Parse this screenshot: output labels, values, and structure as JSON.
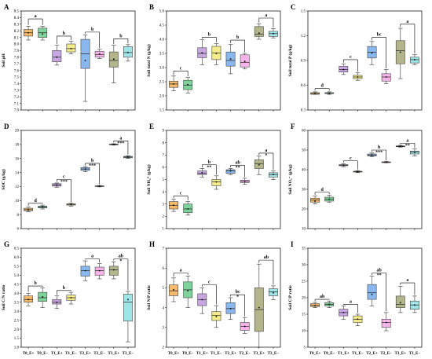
{
  "figure": {
    "colors": [
      "#f4b96a",
      "#7ed39a",
      "#c7a6e2",
      "#f4ec8b",
      "#8ab8ee",
      "#f6b4ea",
      "#b5b58b",
      "#9fe5e8"
    ]
  },
  "chart_data": [
    {
      "panel": "A",
      "type": "box",
      "ylabel": "Soil pH",
      "ylim": [
        7.0,
        8.5
      ],
      "yticks": [
        7.0,
        7.1,
        7.2,
        7.3,
        7.4,
        7.5,
        7.6,
        7.7,
        7.8,
        7.9,
        8.0,
        8.1,
        8.2,
        8.3,
        8.4,
        8.5
      ],
      "ytick_labels": [
        "7.0",
        "7.1",
        "7.2",
        "7.3",
        "7.4",
        "7.5",
        "7.6",
        "7.7",
        "7.8",
        "7.9",
        "8.0",
        "8.1",
        "8.2",
        "8.3",
        "8.4",
        "8.5"
      ],
      "categories": [
        "T0_E+",
        "T0_E−",
        "T1_E+",
        "T1_E−",
        "T2_E+",
        "T2_E−",
        "T3_E+",
        "T3_E−"
      ],
      "boxes": [
        [
          8.06,
          8.12,
          8.17,
          8.22,
          8.27
        ],
        [
          8.06,
          8.1,
          8.17,
          8.24,
          8.27
        ],
        [
          7.68,
          7.73,
          7.8,
          7.9,
          7.98
        ],
        [
          7.85,
          7.88,
          7.93,
          8.0,
          8.04
        ],
        [
          7.13,
          7.63,
          7.85,
          8.07,
          8.14
        ],
        [
          7.78,
          7.8,
          7.84,
          7.89,
          7.92
        ],
        [
          7.41,
          7.65,
          7.75,
          7.88,
          7.98
        ],
        [
          7.74,
          7.8,
          7.87,
          7.96,
          7.99
        ]
      ],
      "means": [
        8.17,
        8.15,
        7.8,
        7.93,
        7.75,
        7.85,
        7.77,
        7.87
      ],
      "groups": [
        {
          "pair": [
            0,
            1
          ],
          "letter": "a",
          "y": 8.38
        },
        {
          "pair": [
            2,
            3
          ],
          "letter": "b",
          "y": 8.12
        },
        {
          "pair": [
            4,
            5
          ],
          "letter": "b",
          "y": 8.18
        },
        {
          "pair": [
            6,
            7
          ],
          "letter": "b",
          "y": 8.08
        }
      ]
    },
    {
      "panel": "B",
      "type": "box",
      "ylabel": "Soil total N (g/kg)",
      "ylim": [
        1.5,
        5.0
      ],
      "yticks": [
        1.5,
        2.0,
        2.5,
        3.0,
        3.5,
        4.0,
        4.5,
        5.0
      ],
      "ytick_labels": [
        "1.5",
        "2.0",
        "2.5",
        "3.0",
        "3.5",
        "4.0",
        "4.5",
        "5.0"
      ],
      "categories": [
        "T0_E+",
        "T0_E−",
        "T1_E+",
        "T1_E−",
        "T2_E+",
        "T2_E−",
        "T3_E+",
        "T3_E−"
      ],
      "boxes": [
        [
          2.18,
          2.3,
          2.42,
          2.52,
          2.7
        ],
        [
          2.1,
          2.22,
          2.38,
          2.55,
          2.65
        ],
        [
          3.1,
          3.35,
          3.5,
          3.7,
          3.98
        ],
        [
          3.1,
          3.28,
          3.52,
          3.75,
          3.85
        ],
        [
          2.78,
          3.05,
          3.25,
          3.55,
          3.82
        ],
        [
          2.95,
          3.02,
          3.18,
          3.45,
          3.5
        ],
        [
          4.0,
          4.1,
          4.18,
          4.45,
          4.55
        ],
        [
          4.05,
          4.1,
          4.2,
          4.28,
          4.38
        ]
      ],
      "means": [
        2.42,
        2.4,
        3.52,
        3.5,
        3.3,
        3.22,
        4.22,
        4.2
      ],
      "groups": [
        {
          "pair": [
            0,
            1
          ],
          "letter": "c",
          "y": 2.88
        },
        {
          "pair": [
            2,
            3
          ],
          "letter": "b",
          "y": 4.07
        },
        {
          "pair": [
            4,
            5
          ],
          "letter": "b",
          "y": 3.97
        },
        {
          "pair": [
            6,
            7
          ],
          "letter": "a",
          "y": 4.75
        }
      ]
    },
    {
      "panel": "C",
      "type": "box",
      "ylabel": "Soil total P (g/kg)",
      "ylim": [
        0.3,
        1.5
      ],
      "yticks": [
        0.3,
        0.6,
        0.9,
        1.2,
        1.5
      ],
      "ytick_labels": [
        "0.3",
        "0.6",
        "0.9",
        "1.2",
        "1.5"
      ],
      "categories": [
        "T0_E+",
        "T0_E−",
        "T1_E+",
        "T1_E−",
        "T2_E+",
        "T2_E−",
        "T3_E+",
        "T3_E−"
      ],
      "boxes": [
        [
          0.49,
          0.49,
          0.5,
          0.51,
          0.52
        ],
        [
          0.49,
          0.5,
          0.5,
          0.51,
          0.52
        ],
        [
          0.73,
          0.76,
          0.79,
          0.83,
          0.86
        ],
        [
          0.66,
          0.68,
          0.7,
          0.72,
          0.75
        ],
        [
          0.85,
          0.93,
          1.0,
          1.07,
          1.13
        ],
        [
          0.62,
          0.65,
          0.7,
          0.74,
          0.79
        ],
        [
          0.68,
          0.86,
          1.02,
          1.14,
          1.29
        ],
        [
          0.85,
          0.87,
          0.91,
          0.94,
          0.97
        ]
      ],
      "means": [
        0.5,
        0.5,
        0.79,
        0.7,
        0.99,
        0.7,
        1.0,
        0.91
      ],
      "groups": [
        {
          "pair": [
            0,
            1
          ],
          "letter": "d",
          "y": 0.56
        },
        {
          "pair": [
            2,
            3
          ],
          "letter": "c",
          "y": 0.91
        },
        {
          "pair": [
            4,
            5
          ],
          "letter": "bc",
          "y": 1.18
        },
        {
          "pair": [
            6,
            7
          ],
          "letter": "a",
          "y": 1.34
        }
      ]
    },
    {
      "panel": "D",
      "type": "box",
      "ylabel": "SOC (g/kg)",
      "ylim": [
        6,
        20
      ],
      "yticks": [
        6,
        8,
        10,
        12,
        14,
        16,
        18,
        20
      ],
      "ytick_labels": [
        "6",
        "8",
        "10",
        "12",
        "14",
        "16",
        "18",
        "20"
      ],
      "categories": [
        "T0_E+",
        "T0_E−",
        "T1_E+",
        "T1_E−",
        "T2_E+",
        "T2_E−",
        "T3_E+",
        "T3_E−"
      ],
      "boxes": [
        [
          8.4,
          8.55,
          8.7,
          8.9,
          9.05
        ],
        [
          8.8,
          8.95,
          9.1,
          9.2,
          9.35
        ],
        [
          11.9,
          12.05,
          12.2,
          12.4,
          12.5
        ],
        [
          9.2,
          9.35,
          9.45,
          9.55,
          9.6
        ],
        [
          14.1,
          14.3,
          14.5,
          14.7,
          14.85
        ],
        [
          11.95,
          12.0,
          12.05,
          12.1,
          12.15
        ],
        [
          17.9,
          17.95,
          18.0,
          18.05,
          18.1
        ],
        [
          16.0,
          16.1,
          16.2,
          16.3,
          16.4
        ]
      ],
      "means": [
        8.7,
        9.1,
        12.2,
        9.45,
        14.5,
        12.05,
        18.0,
        16.2
      ],
      "groups": [
        {
          "pair": [
            0,
            1
          ],
          "letter": "d",
          "y": 9.6,
          "star": ""
        },
        {
          "pair": [
            2,
            3
          ],
          "letter": "c",
          "y": 13.0,
          "star": "***"
        },
        {
          "pair": [
            4,
            5
          ],
          "letter": "b",
          "y": 15.3,
          "star": "***"
        },
        {
          "pair": [
            6,
            7
          ],
          "letter": "a",
          "y": 18.5,
          "star": "***"
        }
      ]
    },
    {
      "panel": "E",
      "type": "box",
      "ylabel": "Soil NH₄⁺ (g/kg)",
      "ylim": [
        1,
        9
      ],
      "yticks": [
        1,
        2,
        3,
        4,
        5,
        6,
        7,
        8,
        9
      ],
      "ytick_labels": [
        "1",
        "2",
        "3",
        "4",
        "5",
        "6",
        "7",
        "8",
        "9"
      ],
      "categories": [
        "T0_E+",
        "T0_E−",
        "T1_E+",
        "T1_E−",
        "T2_E+",
        "T2_E−",
        "T3_E+",
        "T3_E−"
      ],
      "boxes": [
        [
          2.4,
          2.6,
          2.9,
          3.2,
          3.4
        ],
        [
          2.1,
          2.3,
          2.6,
          3.0,
          3.2
        ],
        [
          5.2,
          5.4,
          5.5,
          5.7,
          5.9
        ],
        [
          4.2,
          4.5,
          4.8,
          5.0,
          5.3
        ],
        [
          5.4,
          5.5,
          5.7,
          5.8,
          5.9
        ],
        [
          4.6,
          4.75,
          4.85,
          4.95,
          5.1
        ],
        [
          5.4,
          5.9,
          6.3,
          6.6,
          6.9
        ],
        [
          5.0,
          5.2,
          5.4,
          5.55,
          5.7
        ]
      ],
      "means": [
        2.9,
        2.6,
        5.55,
        4.8,
        5.7,
        4.85,
        6.2,
        5.4
      ],
      "groups": [
        {
          "pair": [
            0,
            1
          ],
          "letter": "c",
          "y": 3.65,
          "star": ""
        },
        {
          "pair": [
            2,
            3
          ],
          "letter": "b",
          "y": 6.2,
          "star": "**"
        },
        {
          "pair": [
            4,
            5
          ],
          "letter": "ab",
          "y": 6.15,
          "star": "**"
        },
        {
          "pair": [
            6,
            7
          ],
          "letter": "a",
          "y": 7.15,
          "star": "*"
        }
      ]
    },
    {
      "panel": "F",
      "type": "box",
      "ylabel": "Soil NO₃⁻ (g/kg)",
      "ylim": [
        10,
        60
      ],
      "yticks": [
        10,
        20,
        30,
        40,
        50,
        60
      ],
      "ytick_labels": [
        "10",
        "20",
        "30",
        "40",
        "50",
        "60"
      ],
      "categories": [
        "T0_E+",
        "T0_E−",
        "T1_E+",
        "T1_E−",
        "T2_E+",
        "T2_E−",
        "T3_E+",
        "T3_E−"
      ],
      "boxes": [
        [
          22.5,
          23.5,
          24.5,
          25.5,
          26.5
        ],
        [
          23.5,
          24.0,
          25.0,
          26.0,
          27.0
        ],
        [
          41.5,
          42.0,
          42.3,
          42.6,
          43.0
        ],
        [
          38.5,
          38.8,
          39.0,
          39.2,
          39.5
        ],
        [
          46.5,
          47.0,
          47.5,
          48.0,
          48.5
        ],
        [
          43.5,
          43.6,
          43.8,
          44.0,
          44.2
        ],
        [
          51.5,
          51.7,
          51.9,
          52.1,
          52.4
        ],
        [
          47.0,
          48.0,
          49.0,
          49.5,
          50.5
        ]
      ],
      "means": [
        24.0,
        25.0,
        42.3,
        39.0,
        47.5,
        43.8,
        51.9,
        48.8
      ],
      "groups": [
        {
          "pair": [
            0,
            1
          ],
          "letter": "d",
          "y": 28.5,
          "star": ""
        },
        {
          "pair": [
            2,
            3
          ],
          "letter": "c",
          "y": 44.5,
          "star": ""
        },
        {
          "pair": [
            4,
            5
          ],
          "letter": "b",
          "y": 50.0,
          "star": "***"
        },
        {
          "pair": [
            6,
            7
          ],
          "letter": "a",
          "y": 53.5,
          "star": "**"
        }
      ]
    },
    {
      "panel": "G",
      "type": "box",
      "ylabel": "Soil C/N ratio",
      "ylim": [
        1.0,
        6.5
      ],
      "yticks": [
        1.0,
        1.5,
        2.0,
        2.5,
        3.0,
        3.5,
        4.0,
        4.5,
        5.0,
        5.5,
        6.0,
        6.5
      ],
      "ytick_labels": [
        "1.0",
        "1.5",
        "2.0",
        "2.5",
        "3.0",
        "3.5",
        "4.0",
        "4.5",
        "5.0",
        "5.5",
        "6.0",
        "6.5"
      ],
      "categories": [
        "T0_E+",
        "T0_E−",
        "T1_E+",
        "T1_E−",
        "T2_E+",
        "T2_E−",
        "T3_E+",
        "T3_E−"
      ],
      "boxes": [
        [
          3.3,
          3.5,
          3.65,
          3.85,
          4.0
        ],
        [
          3.2,
          3.55,
          3.75,
          4.05,
          4.3
        ],
        [
          3.15,
          3.4,
          3.5,
          3.65,
          3.85
        ],
        [
          3.4,
          3.6,
          3.75,
          3.9,
          4.05
        ],
        [
          4.7,
          4.95,
          5.25,
          5.5,
          5.8
        ],
        [
          4.8,
          5.0,
          5.25,
          5.45,
          5.65
        ],
        [
          4.8,
          5.0,
          5.3,
          5.5,
          5.75
        ],
        [
          1.3,
          2.45,
          3.5,
          3.95,
          4.1
        ]
      ],
      "means": [
        3.65,
        3.8,
        3.5,
        3.75,
        5.25,
        5.25,
        5.3,
        3.65
      ],
      "groups": [
        {
          "pair": [
            0,
            1
          ],
          "letter": "b",
          "y": 4.4,
          "star": ""
        },
        {
          "pair": [
            2,
            3
          ],
          "letter": "b",
          "y": 4.15,
          "star": ""
        },
        {
          "pair": [
            4,
            5
          ],
          "letter": "a",
          "y": 5.9,
          "star": ""
        },
        {
          "pair": [
            6,
            7
          ],
          "letter": "ab",
          "y": 5.9,
          "star": "*"
        }
      ]
    },
    {
      "panel": "H",
      "type": "box",
      "ylabel": "Soil N/P ratio",
      "ylim": [
        2,
        7
      ],
      "yticks": [
        2,
        3,
        4,
        5,
        6,
        7
      ],
      "ytick_labels": [
        "2",
        "3",
        "4",
        "5",
        "6",
        "7"
      ],
      "categories": [
        "T0_E+",
        "T0_E−",
        "T1_E+",
        "T1_E−",
        "T2_E+",
        "T2_E−",
        "T3_E+",
        "T3_E−"
      ],
      "boxes": [
        [
          4.3,
          4.6,
          4.85,
          5.15,
          5.5
        ],
        [
          4.0,
          4.5,
          4.9,
          5.3,
          5.6
        ],
        [
          3.7,
          4.1,
          4.4,
          4.7,
          5.0
        ],
        [
          3.0,
          3.35,
          3.6,
          3.8,
          4.1
        ],
        [
          3.4,
          3.7,
          3.95,
          4.25,
          4.5
        ],
        [
          2.7,
          2.85,
          3.05,
          3.25,
          3.5
        ],
        [
          2.0,
          2.8,
          3.9,
          5.0,
          6.2
        ],
        [
          4.4,
          4.6,
          4.8,
          4.95,
          5.1
        ]
      ],
      "means": [
        4.9,
        4.85,
        4.4,
        3.55,
        3.95,
        3.05,
        4.0,
        4.75
      ],
      "groups": [
        {
          "pair": [
            0,
            1
          ],
          "letter": "a",
          "y": 5.75,
          "star": ""
        },
        {
          "pair": [
            2,
            3
          ],
          "letter": "c",
          "y": 5.15,
          "star": ""
        },
        {
          "pair": [
            4,
            5
          ],
          "letter": "bc",
          "y": 4.65,
          "star": "*"
        },
        {
          "pair": [
            6,
            7
          ],
          "letter": "ab",
          "y": 6.4,
          "star": ""
        }
      ]
    },
    {
      "panel": "I",
      "type": "box",
      "ylabel": "Soil C/P ratio",
      "ylim": [
        5,
        35
      ],
      "yticks": [
        5,
        10,
        15,
        20,
        25,
        30,
        35
      ],
      "ytick_labels": [
        "5",
        "10",
        "15",
        "20",
        "25",
        "30",
        "35"
      ],
      "categories": [
        "T0_E+",
        "T0_E−",
        "T1_E+",
        "T1_E−",
        "T2_E+",
        "T2_E−",
        "T3_E+",
        "T3_E−"
      ],
      "boxes": [
        [
          17.0,
          17.3,
          17.7,
          18.2,
          18.6
        ],
        [
          17.0,
          17.5,
          18.0,
          18.5,
          19.0
        ],
        [
          13.5,
          14.5,
          15.5,
          16.5,
          17.5
        ],
        [
          11.5,
          12.5,
          13.5,
          14.5,
          15.0
        ],
        [
          17.5,
          19.5,
          21.5,
          24.0,
          26.5
        ],
        [
          10.0,
          11.0,
          12.5,
          13.5,
          15.5
        ],
        [
          15.5,
          17.0,
          18.0,
          20.5,
          23.5
        ],
        [
          15.5,
          16.5,
          17.8,
          19.0,
          20.5
        ]
      ],
      "means": [
        17.7,
        18.0,
        15.5,
        13.5,
        21.0,
        12.5,
        18.5,
        17.8
      ],
      "groups": [
        {
          "pair": [
            0,
            1
          ],
          "letter": "ab",
          "y": 19.5,
          "star": ""
        },
        {
          "pair": [
            2,
            3
          ],
          "letter": "a",
          "y": 18.0,
          "star": ""
        },
        {
          "pair": [
            4,
            5
          ],
          "letter": "ab",
          "y": 27.5,
          "star": "**"
        },
        {
          "pair": [
            6,
            7
          ],
          "letter": "a",
          "y": 24.5,
          "star": ""
        }
      ]
    }
  ]
}
